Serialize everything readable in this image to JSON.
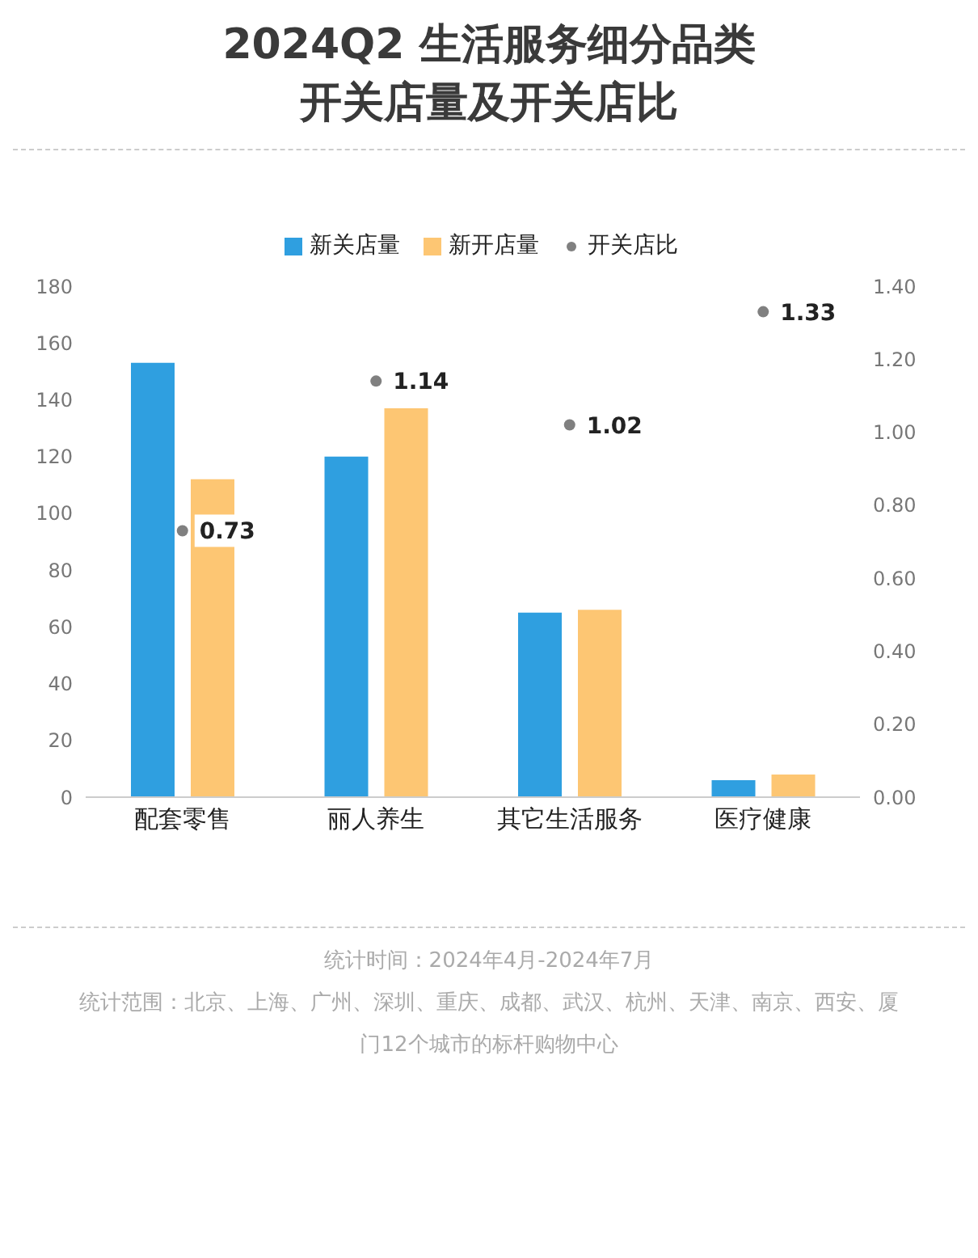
{
  "chart_data": {
    "type": "bar",
    "title": "2024Q2 生活服务细分品类开关店量及开关店比",
    "categories": [
      "配套零售",
      "丽人养生",
      "其它生活服务",
      "医疗健康"
    ],
    "series": [
      {
        "name": "新关店量",
        "color": "#2f9fe0",
        "values": [
          153,
          120,
          65,
          6
        ]
      },
      {
        "name": "新开店量",
        "color": "#fdc673",
        "values": [
          112,
          137,
          66,
          8
        ]
      },
      {
        "name": "开关店比",
        "type": "scatter",
        "axis": "y2",
        "color": "#808080",
        "values": [
          0.73,
          1.14,
          1.02,
          1.33
        ],
        "value_labels": [
          "0.73",
          "1.14",
          "1.02",
          "1.33"
        ]
      }
    ],
    "ylim": [
      0,
      180
    ],
    "yticks": [
      0,
      20,
      40,
      60,
      80,
      100,
      120,
      140,
      160,
      180
    ],
    "y2lim": [
      0,
      1.4
    ],
    "y2ticks": [
      {
        "value": 0,
        "label": "0.00"
      },
      {
        "value": 0.2,
        "label": "0.20"
      },
      {
        "value": 0.4,
        "label": "0.40"
      },
      {
        "value": 0.6,
        "label": "0.60"
      },
      {
        "value": 0.8,
        "label": "0.80"
      },
      {
        "value": 1.0,
        "label": "1.00"
      },
      {
        "value": 1.2,
        "label": "1.20"
      },
      {
        "value": 1.4,
        "label": "1.40"
      }
    ],
    "legend": "top",
    "marker": "circle",
    "annotations": [
      "统计时间：2024年4月-2024年7月",
      "统计范围：北京、上海、广州、深圳、重庆、成都、武汉、杭州、天津、南京、西安、厦门12个城市的标杆购物中心"
    ]
  }
}
